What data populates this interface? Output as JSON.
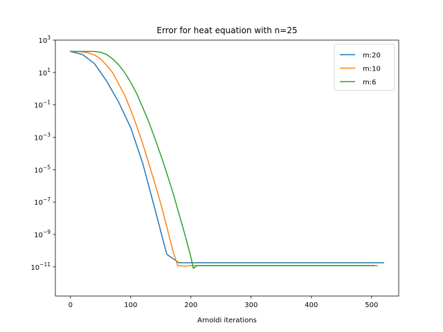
{
  "chart_data": {
    "type": "line",
    "title": "Error for heat equation with n=25",
    "xlabel": "Arnoldi iterations",
    "ylabel": "",
    "yscale": "log",
    "xlim": [
      -25,
      545
    ],
    "ylim_exp": [
      -12.8,
      3.0
    ],
    "grid": false,
    "legend_position": "top-right",
    "x_ticks": [
      0,
      100,
      200,
      300,
      400,
      500
    ],
    "y_tick_exponents": [
      3,
      1,
      -1,
      -3,
      -5,
      -7,
      -9,
      -11
    ],
    "y_tick_base": "10",
    "series": [
      {
        "name": "m:20",
        "color": "#1f77b4",
        "x": [
          0,
          20,
          40,
          60,
          80,
          100,
          120,
          140,
          160,
          180,
          200,
          300,
          400,
          520
        ],
        "y": [
          200.0,
          130.0,
          35.0,
          3.0,
          0.15,
          0.004,
          2.5e-05,
          4e-08,
          6e-11,
          1.8e-11,
          1.8e-11,
          1.8e-11,
          1.8e-11,
          1.8e-11
        ]
      },
      {
        "name": "m:10",
        "color": "#ff7f0e",
        "x": [
          0,
          10,
          20,
          30,
          40,
          50,
          60,
          70,
          80,
          90,
          100,
          110,
          120,
          130,
          140,
          150,
          160,
          170,
          178,
          190,
          200,
          300,
          400,
          510
        ],
        "y": [
          200.0,
          200.0,
          190.0,
          160.0,
          120.0,
          70.0,
          28.0,
          10.0,
          2.0,
          0.4,
          0.05,
          0.005,
          0.0004,
          2.5e-05,
          1.5e-06,
          8e-08,
          3e-09,
          1e-10,
          1.2e-11,
          1.1e-11,
          1.2e-11,
          1.2e-11,
          1.2e-11,
          1.2e-11
        ]
      },
      {
        "name": "m:6",
        "color": "#2ca02c",
        "x": [
          0,
          10,
          20,
          30,
          40,
          50,
          60,
          70,
          80,
          90,
          100,
          110,
          120,
          130,
          140,
          150,
          160,
          170,
          180,
          190,
          200,
          204,
          210,
          220,
          300,
          400,
          505
        ],
        "y": [
          200.0,
          200.0,
          200.0,
          200.0,
          200.0,
          180.0,
          130.0,
          70.0,
          30.0,
          10.0,
          2.5,
          0.5,
          0.07,
          0.009,
          0.0009,
          8e-05,
          6e-06,
          4e-07,
          2e-08,
          1e-09,
          4e-11,
          8e-12,
          1.2e-11,
          1.2e-11,
          1.2e-11,
          1.2e-11,
          1.2e-11
        ]
      }
    ]
  }
}
